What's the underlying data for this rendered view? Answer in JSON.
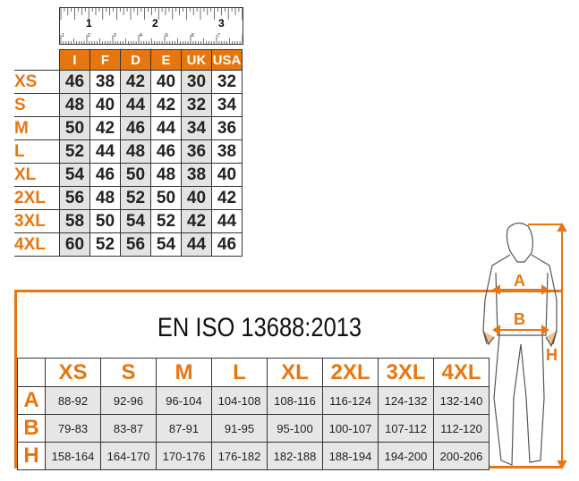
{
  "ruler": {
    "inch_labels": [
      "1",
      "2",
      "3"
    ],
    "cm_labels": [
      "1",
      "2",
      "3",
      "4",
      "5",
      "6",
      "7"
    ]
  },
  "conversion_table": {
    "headers": [
      "I",
      "F",
      "D",
      "E",
      "UK",
      "USA"
    ],
    "rows": [
      {
        "size": "XS",
        "values": [
          "46",
          "38",
          "42",
          "40",
          "30",
          "32"
        ]
      },
      {
        "size": "S",
        "values": [
          "48",
          "40",
          "44",
          "42",
          "32",
          "34"
        ]
      },
      {
        "size": "M",
        "values": [
          "50",
          "42",
          "46",
          "44",
          "34",
          "36"
        ]
      },
      {
        "size": "L",
        "values": [
          "52",
          "44",
          "48",
          "46",
          "36",
          "38"
        ]
      },
      {
        "size": "XL",
        "values": [
          "54",
          "46",
          "50",
          "48",
          "38",
          "40"
        ]
      },
      {
        "size": "2XL",
        "values": [
          "56",
          "48",
          "52",
          "50",
          "40",
          "42"
        ]
      },
      {
        "size": "3XL",
        "values": [
          "58",
          "50",
          "54",
          "52",
          "42",
          "44"
        ]
      },
      {
        "size": "4XL",
        "values": [
          "60",
          "52",
          "56",
          "54",
          "44",
          "46"
        ]
      }
    ]
  },
  "standard": {
    "title": "EN ISO 13688:2013"
  },
  "measure_table": {
    "sizes": [
      "XS",
      "S",
      "M",
      "L",
      "XL",
      "2XL",
      "3XL",
      "4XL"
    ],
    "rows": [
      {
        "label": "A",
        "values": [
          "88-92",
          "92-96",
          "96-104",
          "104-108",
          "108-116",
          "116-124",
          "124-132",
          "132-140"
        ]
      },
      {
        "label": "B",
        "values": [
          "79-83",
          "83-87",
          "87-91",
          "91-95",
          "95-100",
          "100-107",
          "107-112",
          "112-120"
        ]
      },
      {
        "label": "H",
        "values": [
          "158-164",
          "164-170",
          "170-176",
          "176-182",
          "182-188",
          "188-194",
          "194-200",
          "200-206"
        ]
      }
    ]
  },
  "figure": {
    "labels": {
      "a": "A",
      "b": "B",
      "h": "H"
    }
  },
  "colors": {
    "accent": "#e8760f",
    "shade": "#e3e3e3"
  }
}
